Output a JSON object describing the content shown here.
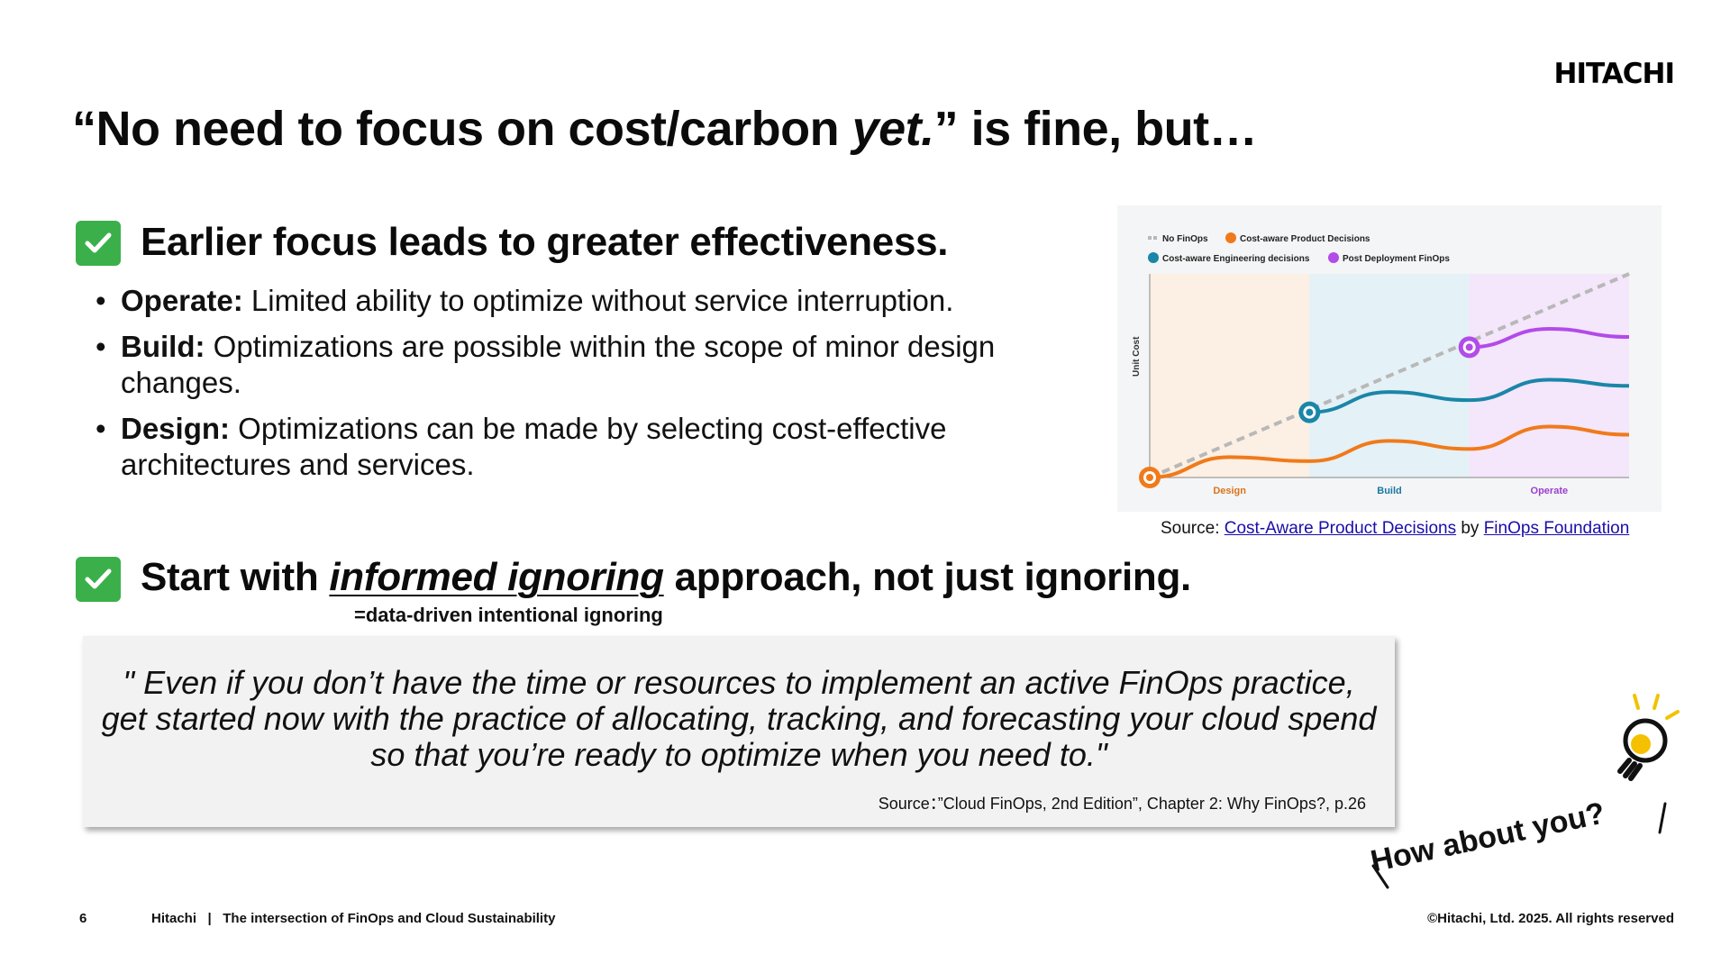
{
  "brand": {
    "logo": "HITACHI"
  },
  "title": {
    "prefix": "“No need to focus on cost/carbon ",
    "italic": "yet.",
    "suffix": "” is fine, but…"
  },
  "section1": {
    "heading": "Earlier focus leads to greater effectiveness.",
    "bullets": [
      {
        "term": "Operate:",
        "text": " Limited ability to optimize without service interruption."
      },
      {
        "term": "Build:",
        "text": " Optimizations are possible within the scope of minor design changes."
      },
      {
        "term": "Design:",
        "text": " Optimizations can be made by selecting cost-effective architectures and services."
      }
    ]
  },
  "section2": {
    "heading_prefix": "Start with ",
    "heading_emph": "informed ignoring",
    "heading_suffix": " approach, not just ignoring.",
    "note": "=data-driven intentional ignoring"
  },
  "chart_data": {
    "type": "line",
    "ylabel": "Unit Cost",
    "phases": [
      "Design",
      "Build",
      "Operate"
    ],
    "legend": [
      "No FinOps",
      "Cost-aware Product Decisions",
      "Cost-aware Engineering decisions",
      "Post Deployment FinOps"
    ],
    "colors": {
      "no_finops": "#b8b8b8",
      "product": "#f07a1a",
      "engineering": "#1a86a8",
      "post": "#b24be8",
      "design_bg": "#fcefe4",
      "build_bg": "#e4f1f6",
      "operate_bg": "#f4e6fb",
      "design_label": "#d9731a",
      "build_label": "#1a78a0",
      "operate_label": "#9a3fd0"
    },
    "series": [
      {
        "name": "No FinOps",
        "x": [
          0,
          3
        ],
        "y": [
          0,
          100
        ]
      },
      {
        "name": "Cost-aware Product Decisions",
        "x": [
          0,
          0.5,
          1,
          1.5,
          2,
          2.5,
          3
        ],
        "y": [
          0,
          10,
          8,
          18,
          14,
          25,
          21
        ]
      },
      {
        "name": "Cost-aware Engineering decisions",
        "x": [
          1,
          1.5,
          2,
          2.5,
          3
        ],
        "y": [
          32,
          42,
          38,
          48,
          45
        ]
      },
      {
        "name": "Post Deployment FinOps",
        "x": [
          2,
          2.5,
          3
        ],
        "y": [
          64,
          73,
          69
        ]
      }
    ]
  },
  "chart_source": {
    "prefix": "Source: ",
    "link1": "Cost-Aware Product Decisions",
    "by": " by ",
    "link2": "FinOps Foundation"
  },
  "quote": {
    "text": "\" Even if you don’t have the time or resources to implement an active FinOps practice, get started now with the practice of allocating, tracking, and forecasting your cloud spend so that you’re ready to optimize when you need to.\"",
    "source": "Source：”Cloud FinOps, 2nd Edition”, Chapter 2: Why FinOps?, p.26"
  },
  "callout": "How about you?",
  "footer": {
    "page": "6",
    "company": "Hitachi",
    "separator": "|",
    "deck_title": "The intersection of FinOps and Cloud Sustainability",
    "copyright": "©Hitachi, Ltd. 2025. All rights reserved"
  }
}
